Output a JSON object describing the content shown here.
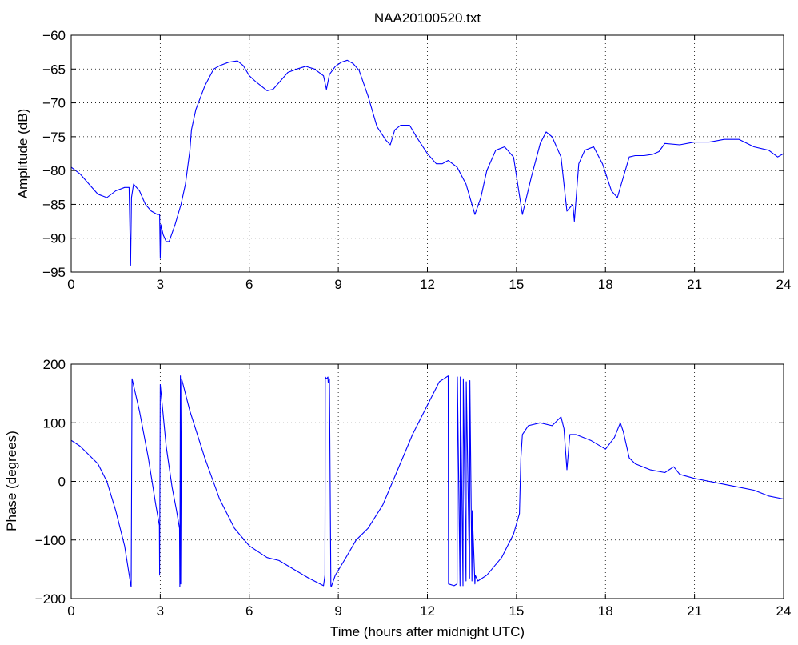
{
  "colors": {
    "trace": "#0000FF",
    "axes": "#000000",
    "background": "#FFFFFF"
  },
  "chart_data": [
    {
      "type": "line",
      "title": "NAA20100520.txt",
      "xlabel": "",
      "ylabel": "Amplitude (dB)",
      "xlim": [
        0,
        24
      ],
      "ylim": [
        -95,
        -60
      ],
      "xticks": [
        0,
        3,
        6,
        9,
        12,
        15,
        18,
        21,
        24
      ],
      "yticks": [
        -95,
        -90,
        -85,
        -80,
        -75,
        -70,
        -65,
        -60
      ],
      "grid": true,
      "series": [
        {
          "x": [
            0,
            0.3,
            0.6,
            0.9,
            1.2,
            1.5,
            1.8,
            1.95,
            2.0,
            2.03,
            2.1,
            2.3,
            2.5,
            2.7,
            2.9,
            2.98,
            3.0,
            3.02,
            3.1,
            3.2,
            3.3,
            3.5,
            3.7,
            3.85,
            4.0,
            4.05,
            4.2,
            4.5,
            4.8,
            5.0,
            5.3,
            5.6,
            5.8,
            6.0,
            6.2,
            6.4,
            6.6,
            6.8,
            7.0,
            7.3,
            7.6,
            7.9,
            8.2,
            8.5,
            8.6,
            8.7,
            8.9,
            9.1,
            9.3,
            9.5,
            9.7,
            10.0,
            10.3,
            10.6,
            10.75,
            10.9,
            11.1,
            11.4,
            11.7,
            12.0,
            12.3,
            12.5,
            12.7,
            13.0,
            13.3,
            13.6,
            13.8,
            14.0,
            14.3,
            14.6,
            14.9,
            15.2,
            15.5,
            15.8,
            16.0,
            16.2,
            16.5,
            16.7,
            16.9,
            16.95,
            17.1,
            17.3,
            17.6,
            17.9,
            18.2,
            18.4,
            18.6,
            18.8,
            19.0,
            19.3,
            19.6,
            19.8,
            20.0,
            20.5,
            21.0,
            21.5,
            22.0,
            22.5,
            23.0,
            23.5,
            23.8,
            24.0
          ],
          "values": [
            -79.5,
            -80.5,
            -82,
            -83.5,
            -84,
            -83,
            -82.5,
            -82.5,
            -94,
            -84,
            -82,
            -83,
            -85,
            -86,
            -86.5,
            -86.5,
            -93,
            -88,
            -89.5,
            -90.5,
            -90.5,
            -88,
            -85,
            -82,
            -77,
            -74,
            -71,
            -67.5,
            -65,
            -64.5,
            -64,
            -63.8,
            -64.5,
            -66,
            -66.8,
            -67.5,
            -68.2,
            -68,
            -67,
            -65.5,
            -65,
            -64.6,
            -65,
            -66,
            -68,
            -65.8,
            -64.6,
            -64,
            -63.7,
            -64.2,
            -65.2,
            -69,
            -73.5,
            -75.5,
            -76.2,
            -74,
            -73.3,
            -73.3,
            -75.5,
            -77.5,
            -79,
            -79,
            -78.5,
            -79.5,
            -82,
            -86.5,
            -84,
            -80,
            -77,
            -76.5,
            -78,
            -86.5,
            -81,
            -76,
            -74.3,
            -75,
            -78,
            -86,
            -85,
            -87.5,
            -79,
            -77,
            -76.5,
            -79,
            -83,
            -84,
            -81,
            -78,
            -77.8,
            -77.8,
            -77.6,
            -77.2,
            -76,
            -76.2,
            -75.8,
            -75.8,
            -75.4,
            -75.4,
            -76.5,
            -77,
            -78,
            -77.5
          ]
        }
      ]
    },
    {
      "type": "line",
      "title": "",
      "xlabel": "Time (hours after midnight UTC)",
      "ylabel": "Phase (degrees)",
      "xlim": [
        0,
        24
      ],
      "ylim": [
        -200,
        200
      ],
      "xticks": [
        0,
        3,
        6,
        9,
        12,
        15,
        18,
        21,
        24
      ],
      "yticks": [
        -200,
        -100,
        0,
        100,
        200
      ],
      "grid": true,
      "series": [
        {
          "x": [
            0,
            0.3,
            0.6,
            0.9,
            1.2,
            1.5,
            1.8,
            2.0,
            2.02,
            2.05,
            2.3,
            2.6,
            2.85,
            2.97,
            2.98,
            3.0,
            3.05,
            3.2,
            3.4,
            3.55,
            3.65,
            3.66,
            3.68,
            3.69,
            3.72,
            4.0,
            4.5,
            5.0,
            5.5,
            6.0,
            6.3,
            6.6,
            7.0,
            7.5,
            8.0,
            8.5,
            8.55,
            8.56,
            8.6,
            8.65,
            8.66,
            8.7,
            8.75,
            8.76,
            8.9,
            9.2,
            9.6,
            10.0,
            10.5,
            11.0,
            11.5,
            12.0,
            12.4,
            12.7,
            12.71,
            12.9,
            13.0,
            13.01,
            13.1,
            13.11,
            13.2,
            13.21,
            13.3,
            13.31,
            13.42,
            13.43,
            13.5,
            13.51,
            13.6,
            13.61,
            13.7,
            14.0,
            14.5,
            14.9,
            15.1,
            15.15,
            15.2,
            15.4,
            15.8,
            16.2,
            16.5,
            16.6,
            16.7,
            16.8,
            17.0,
            17.5,
            18.0,
            18.3,
            18.5,
            18.6,
            18.8,
            19.0,
            19.5,
            20.0,
            20.3,
            20.5,
            21.0,
            21.5,
            22.0,
            22.5,
            23.0,
            23.5,
            24.0
          ],
          "values": [
            70,
            60,
            45,
            30,
            0,
            -50,
            -110,
            -175,
            -180,
            175,
            120,
            40,
            -40,
            -75,
            -160,
            165,
            140,
            60,
            -10,
            -50,
            -80,
            -180,
            180,
            -175,
            175,
            120,
            40,
            -30,
            -80,
            -110,
            -120,
            -130,
            -135,
            -150,
            -165,
            -178,
            -160,
            178,
            175,
            178,
            168,
            175,
            -178,
            -180,
            -160,
            -135,
            -100,
            -80,
            -40,
            20,
            80,
            130,
            170,
            180,
            -175,
            -178,
            -175,
            178,
            -178,
            178,
            -178,
            175,
            -170,
            170,
            -165,
            172,
            -170,
            -50,
            -175,
            -160,
            -170,
            -160,
            -130,
            -90,
            -55,
            40,
            80,
            95,
            100,
            95,
            110,
            90,
            20,
            80,
            80,
            70,
            55,
            75,
            100,
            85,
            40,
            30,
            20,
            15,
            25,
            12,
            5,
            0,
            -5,
            -10,
            -15,
            -25,
            -30
          ]
        }
      ]
    }
  ]
}
